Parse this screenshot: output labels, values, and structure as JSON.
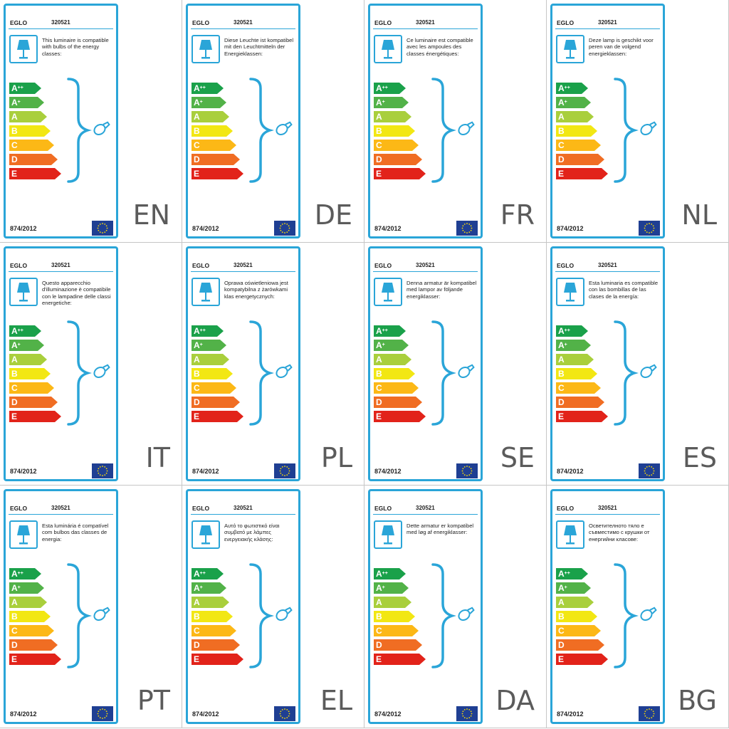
{
  "brand": "EGLO",
  "model": "320521",
  "regulation": "874/2012",
  "energy_classes": [
    {
      "letter": "A",
      "sup": "++",
      "color": "#1aa14a"
    },
    {
      "letter": "A",
      "sup": "+",
      "color": "#52b248"
    },
    {
      "letter": "A",
      "sup": "",
      "color": "#a9cf3c"
    },
    {
      "letter": "B",
      "sup": "",
      "color": "#f2e713"
    },
    {
      "letter": "C",
      "sup": "",
      "color": "#fcb816"
    },
    {
      "letter": "D",
      "sup": "",
      "color": "#f06d23"
    },
    {
      "letter": "E",
      "sup": "",
      "color": "#e2231a"
    }
  ],
  "icons": {
    "lamp": "table-lamp-icon",
    "bulb": "light-bulb-icon",
    "flag": "eu-flag-icon"
  },
  "accent_color": "#2aa5d8",
  "labels": [
    {
      "lang": "EN",
      "text": "This luminaire is compatible with bulbs of the energy classes:"
    },
    {
      "lang": "DE",
      "text": "Diese Leuchte ist kompatibel mit den Leuchtmitteln der Energieklassen:"
    },
    {
      "lang": "FR",
      "text": "Ce luminaire est compatible avec les ampoules des classes énergétiques:"
    },
    {
      "lang": "NL",
      "text": "Deze lamp is geschikt voor peren van de volgend energieklassen:"
    },
    {
      "lang": "IT",
      "text": "Questo apparecchio d'illuminazione è compatibile con le lampadine delle classi energetiche:"
    },
    {
      "lang": "PL",
      "text": "Oprawa oświetleniowa jest kompatybilna z żarówkami klas energetycznych:"
    },
    {
      "lang": "SE",
      "text": "Denna armatur är kompatibel med lampor av följande energiklasser:"
    },
    {
      "lang": "ES",
      "text": "Esta luminaria es compatible con las bombillas de las clases de la energía:"
    },
    {
      "lang": "PT",
      "text": "Esta luminária é compatível com bulbos das classes de energia:"
    },
    {
      "lang": "EL",
      "text": "Αυτό το φωτιστικό είναι συμβατό με λάμπες ενεργειακής κλάσης:"
    },
    {
      "lang": "DA",
      "text": "Dette armatur er kompatibel med løg af energiklasser:"
    },
    {
      "lang": "BG",
      "text": "Осветителното тяло е съвместимо с крушки от енергийни класове:"
    }
  ]
}
